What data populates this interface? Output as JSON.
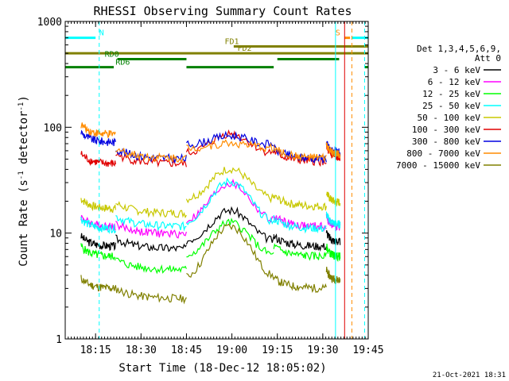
{
  "chart_data": {
    "type": "line",
    "title": "RHESSI Observing Summary Count Rates",
    "xlabel": "Start Time (18-Dec-12 18:05:02)",
    "ylabel_main": "Count Rate (s",
    "ylabel_sup1": "-1",
    "ylabel_mid": " detector",
    "ylabel_sup2": "-1",
    "ylabel_end": ")",
    "footer_date": "21-Oct-2021 18:31",
    "y_scale": "log",
    "ylim": [
      1,
      1000
    ],
    "xlim": [
      18.083,
      19.75
    ],
    "x_ticks": [
      {
        "v": 18.25,
        "label": "18:15"
      },
      {
        "v": 18.5,
        "label": "18:30"
      },
      {
        "v": 18.75,
        "label": "18:45"
      },
      {
        "v": 19.0,
        "label": "19:00"
      },
      {
        "v": 19.25,
        "label": "19:15"
      },
      {
        "v": 19.5,
        "label": "19:30"
      },
      {
        "v": 19.75,
        "label": "19:45"
      }
    ],
    "y_ticks": [
      {
        "v": 1,
        "label": "1"
      },
      {
        "v": 10,
        "label": "10"
      },
      {
        "v": 100,
        "label": "100"
      },
      {
        "v": 1000,
        "label": "1000"
      }
    ],
    "legend_header": [
      "Det 1,3,4,5,6,9,",
      "Att 0"
    ],
    "series": [
      {
        "name": "3 - 6 keV",
        "color": "#000000"
      },
      {
        "name": "6 - 12 keV",
        "color": "#ff00ff"
      },
      {
        "name": "12 - 25 keV",
        "color": "#00ff00"
      },
      {
        "name": "25 - 50 keV",
        "color": "#00ffff"
      },
      {
        "name": "50 - 100 keV",
        "color": "#c8c800"
      },
      {
        "name": "100 - 300 keV",
        "color": "#e00000"
      },
      {
        "name": "300 - 800 keV",
        "color": "#0000e0"
      },
      {
        "name": "800 - 7000 keV",
        "color": "#ff8c00"
      },
      {
        "name": "7000 - 15000 keV",
        "color": "#808000"
      }
    ],
    "flags": [
      {
        "label": "N",
        "color": "#00ffff",
        "y": 700,
        "segments": [
          [
            18.083,
            18.25
          ]
        ],
        "label_x": 18.27
      },
      {
        "label": "S",
        "color": "#ff8c00",
        "y": 700,
        "segments": [
          [
            19.62,
            19.65
          ]
        ],
        "label_x": 19.57
      },
      {
        "label": "",
        "color": "#00ffff",
        "y": 700,
        "segments": [
          [
            19.66,
            19.75
          ]
        ],
        "label_x": 19.66
      },
      {
        "label": "FD1",
        "color": "#808000",
        "y": 580,
        "segments": [
          [
            19.01,
            19.75
          ]
        ],
        "label_x": 18.96
      },
      {
        "label": "FD2",
        "color": "#808000",
        "y": 500,
        "segments": [
          [
            18.083,
            19.75
          ]
        ],
        "label_x": 19.03
      },
      {
        "label": "RD0",
        "color": "#008000",
        "y": 440,
        "segments": [
          [
            18.37,
            18.75
          ],
          [
            19.25,
            19.59
          ]
        ],
        "label_x": 18.3
      },
      {
        "label": "RD6",
        "color": "#008000",
        "y": 370,
        "segments": [
          [
            18.083,
            18.35
          ],
          [
            18.75,
            19.23
          ],
          [
            19.73,
            19.75
          ]
        ],
        "label_x": 18.36
      }
    ],
    "vlines": [
      {
        "x": 18.083,
        "color": "#00ffff",
        "style": "solid"
      },
      {
        "x": 18.27,
        "color": "#00ffff",
        "style": "dashed"
      },
      {
        "x": 19.57,
        "color": "#00ffff",
        "style": "solid"
      },
      {
        "x": 19.62,
        "color": "#e00000",
        "style": "solid"
      },
      {
        "x": 19.66,
        "color": "#ff8c00",
        "style": "dashed"
      },
      {
        "x": 19.73,
        "color": "#00ffff",
        "style": "dashed"
      }
    ]
  }
}
